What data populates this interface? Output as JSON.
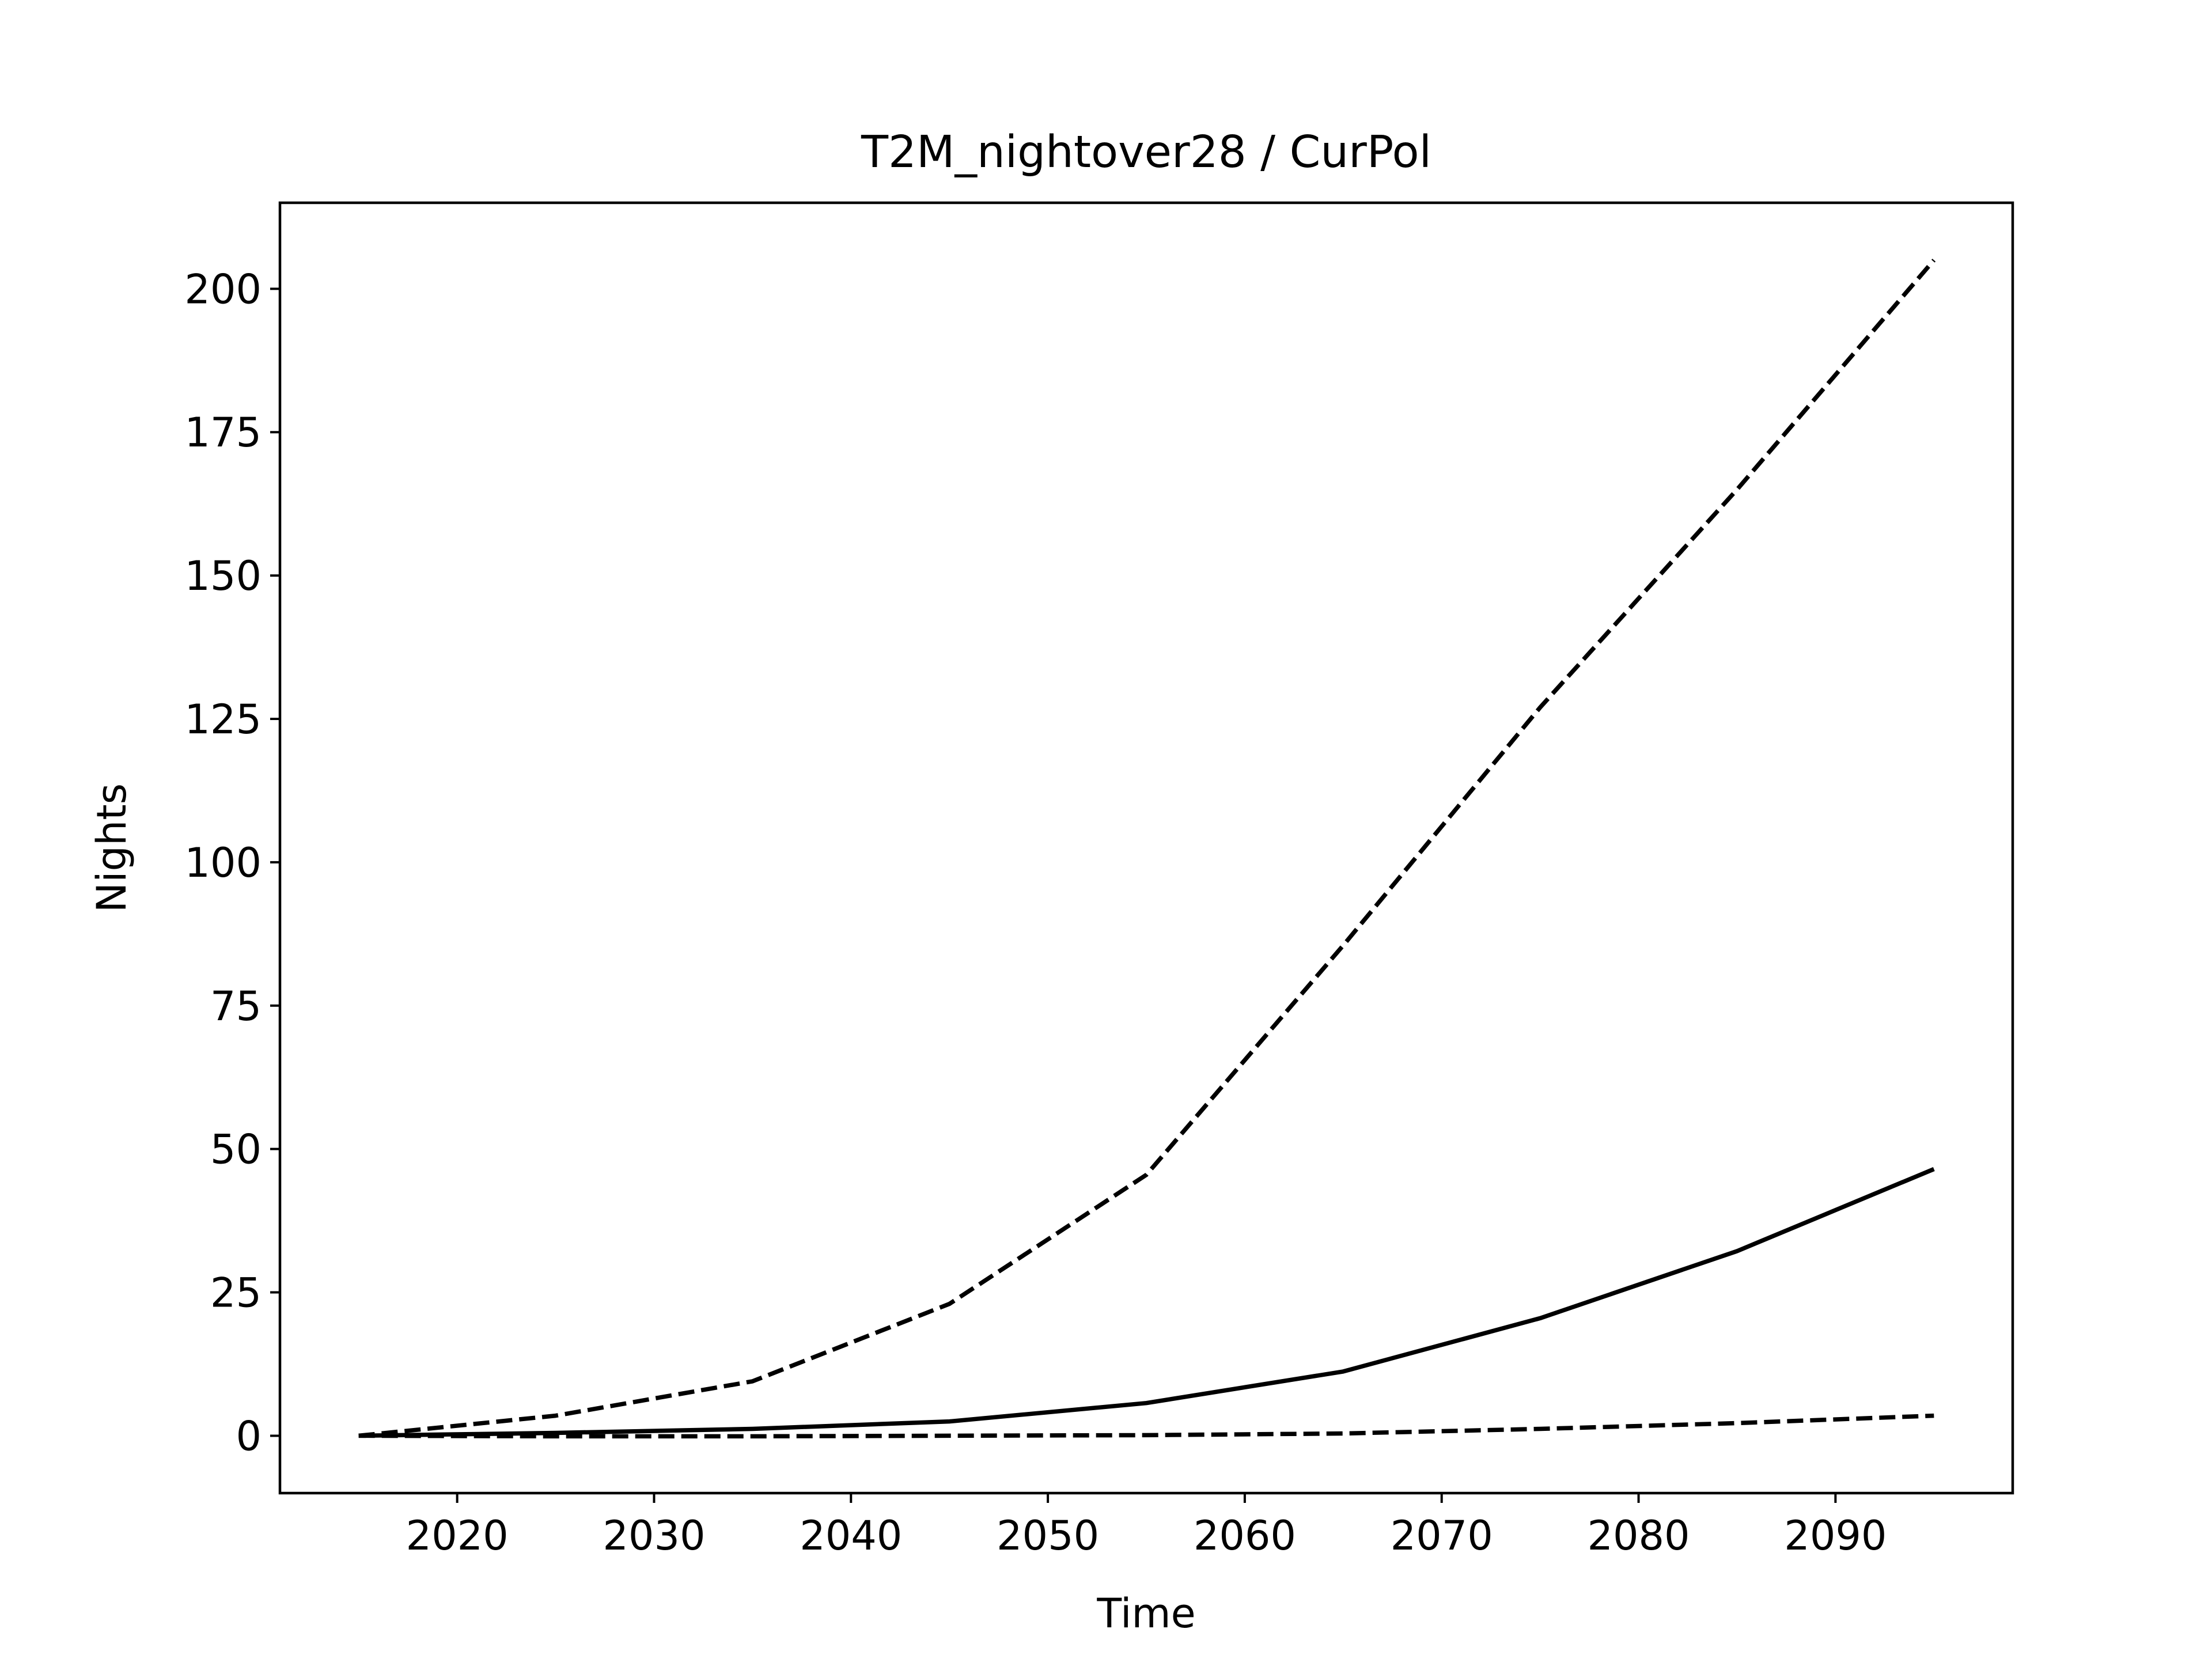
{
  "chart_data": {
    "type": "line",
    "title": "T2M_nightover28 / CurPol",
    "xlabel": "Time",
    "ylabel": "Nights",
    "xlim": [
      2011,
      2099
    ],
    "ylim": [
      -10,
      215
    ],
    "xticks": [
      2020,
      2030,
      2040,
      2050,
      2060,
      2070,
      2080,
      2090
    ],
    "yticks": [
      0,
      25,
      50,
      75,
      100,
      125,
      150,
      175,
      200
    ],
    "grid": false,
    "x": [
      2015,
      2025,
      2035,
      2045,
      2055,
      2065,
      2075,
      2085,
      2095
    ],
    "series": [
      {
        "style": "dashed",
        "color": "#000000",
        "values": [
          0,
          3.5,
          9.5,
          23,
          45.5,
          85.5,
          127,
          165,
          205
        ]
      },
      {
        "style": "solid",
        "color": "#000000",
        "values": [
          0,
          0.5,
          1.2,
          2.5,
          5.7,
          11.2,
          20.5,
          32.2,
          46.5
        ]
      },
      {
        "style": "dashed",
        "color": "#000000",
        "values": [
          0,
          -0.1,
          -0.1,
          0,
          0.1,
          0.4,
          1.2,
          2.2,
          3.5
        ]
      }
    ]
  }
}
